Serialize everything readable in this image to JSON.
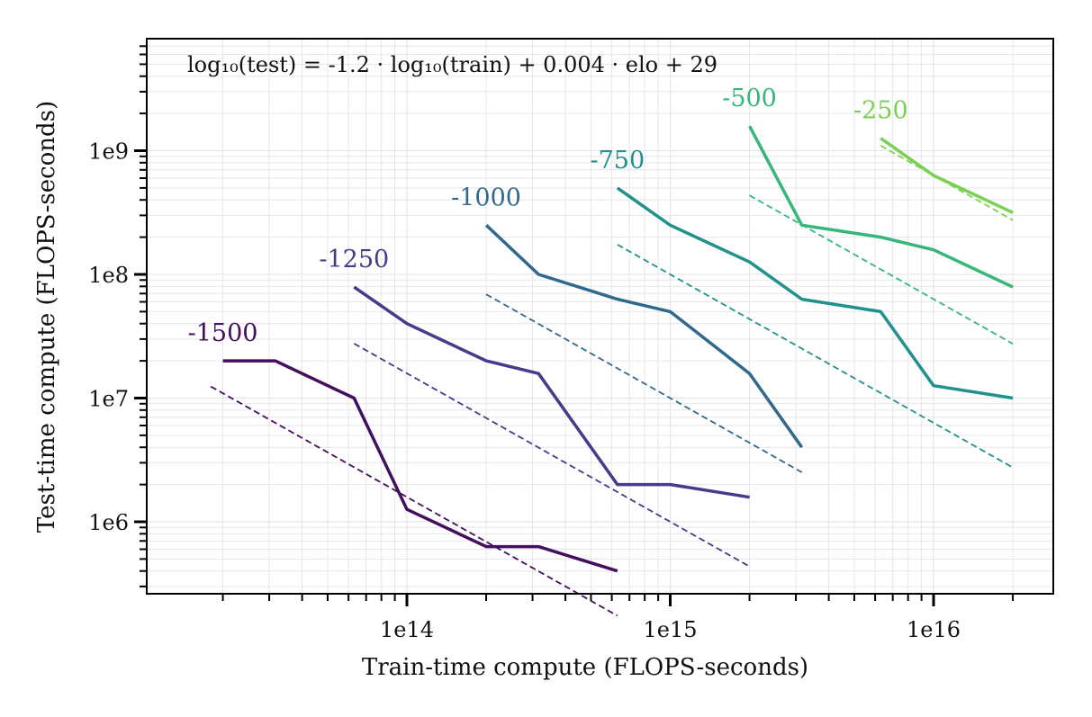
{
  "chart_data": {
    "type": "line",
    "xscale": "log",
    "yscale": "log",
    "xlabel": "Train-time compute (FLOPS-seconds)",
    "ylabel": "Test-time compute (FLOPS-seconds)",
    "xlim": [
      12000000000000.0,
      3.3e+16
    ],
    "ylim": [
      250000.0,
      10000000000.0
    ],
    "x_tick_labels": [
      {
        "value": 100000000000000.0,
        "label": "1e14"
      },
      {
        "value": 1000000000000000.0,
        "label": "1e15"
      },
      {
        "value": 1e+16,
        "label": "1e16"
      }
    ],
    "y_tick_labels": [
      {
        "value": 1000000.0,
        "label": "1e6"
      },
      {
        "value": 10000000.0,
        "label": "1e7"
      },
      {
        "value": 100000000.0,
        "label": "1e8"
      },
      {
        "value": 1000000000.0,
        "label": "1e9"
      }
    ],
    "grid": true,
    "legend": "none",
    "annotation": "log₁₀(test) = -1.2 · log₁₀(train) + 0.004 · elo + 29",
    "fit": {
      "slope": -1.2,
      "elo_coef": 0.004,
      "intercept": 29
    },
    "series": [
      {
        "name": "-1500",
        "elo": -1500,
        "color": "#440f5c",
        "x": [
          20000000000000.0,
          31600000000000.0,
          63000000000000.0,
          100000000000000.0,
          200000000000000.0,
          316000000000000.0,
          630000000000000.0
        ],
        "y": [
          20000000.0,
          20000000.0,
          10000000.0,
          1260000.0,
          630000.0,
          630000.0,
          400000.0
        ]
      },
      {
        "name": "-1250",
        "elo": -1250,
        "color": "#463a8a",
        "x": [
          63000000000000.0,
          100000000000000.0,
          200000000000000.0,
          316000000000000.0,
          630000000000000.0,
          1000000000000000.0,
          2000000000000000.0
        ],
        "y": [
          79000000.0,
          40000000.0,
          20000000.0,
          15800000.0,
          2000000.0,
          2000000.0,
          1580000.0
        ]
      },
      {
        "name": "-1000",
        "elo": -1000,
        "color": "#31688e",
        "x": [
          200000000000000.0,
          316000000000000.0,
          630000000000000.0,
          1000000000000000.0,
          2000000000000000.0,
          3160000000000000.0
        ],
        "y": [
          250000000.0,
          100000000.0,
          63000000.0,
          50000000.0,
          15800000.0,
          4000000.0
        ]
      },
      {
        "name": "-750",
        "elo": -750,
        "color": "#21918c",
        "x": [
          630000000000000.0,
          1000000000000000.0,
          2000000000000000.0,
          3160000000000000.0,
          6300000000000000.0,
          1e+16,
          2e+16
        ],
        "y": [
          500000000.0,
          250000000.0,
          126000000.0,
          63000000.0,
          50000000.0,
          12600000.0,
          10000000.0
        ]
      },
      {
        "name": "-500",
        "elo": -500,
        "color": "#35b779",
        "x": [
          2000000000000000.0,
          3160000000000000.0,
          6300000000000000.0,
          1e+16,
          2e+16
        ],
        "y": [
          1580000000.0,
          250000000.0,
          200000000.0,
          158000000.0,
          79000000.0
        ]
      },
      {
        "name": "-250",
        "elo": -250,
        "color": "#7ad151",
        "x": [
          6300000000000000.0,
          1e+16,
          2e+16
        ],
        "y": [
          1260000000.0,
          630000000.0,
          316000000.0
        ]
      }
    ],
    "fit_lines": [
      {
        "name": "-1500",
        "x_range": [
          18000000000000.0,
          630000000000000.0
        ]
      },
      {
        "name": "-1250",
        "x_range": [
          63000000000000.0,
          2000000000000000.0
        ]
      },
      {
        "name": "-1000",
        "x_range": [
          200000000000000.0,
          3160000000000000.0
        ]
      },
      {
        "name": "-750",
        "x_range": [
          630000000000000.0,
          2e+16
        ]
      },
      {
        "name": "-500",
        "x_range": [
          2000000000000000.0,
          2e+16
        ]
      },
      {
        "name": "-250",
        "x_range": [
          6300000000000000.0,
          2e+16
        ]
      }
    ]
  }
}
